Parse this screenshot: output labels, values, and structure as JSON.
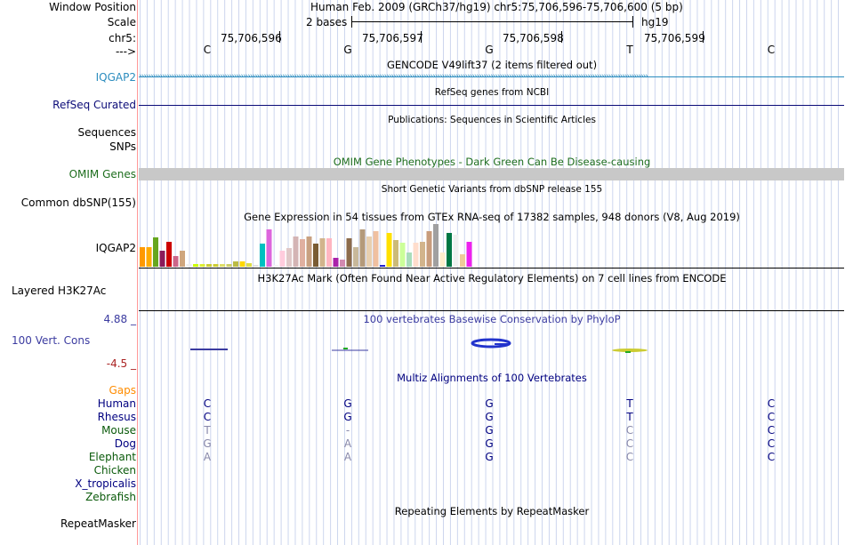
{
  "header": {
    "window_position_label": "Window Position",
    "window_position_text": "Human Feb. 2009 (GRCh37/hg19)   chr5:75,706,596-75,706,600 (5 bp)",
    "scale_label": "Scale",
    "scale_bases": "2 bases",
    "scale_assembly": "hg19",
    "chrom_label": "chr5:",
    "strand_label": "--->",
    "positions": [
      "75,706,596",
      "75,706,597",
      "75,706,598",
      "75,706,599"
    ],
    "bases": [
      "C",
      "G",
      "G",
      "T",
      "C"
    ]
  },
  "tracks": {
    "gencode": {
      "title": "GENCODE V49lift37 (2 items filtered out)",
      "label": "IQGAP2",
      "color": "#2b8cbe"
    },
    "refseq": {
      "title": "RefSeq genes from NCBI",
      "label": "RefSeq Curated",
      "color": "#0c0c78"
    },
    "publications": {
      "title": "Publications: Sequences in Scientific Articles",
      "label1": "Sequences",
      "label2": "SNPs"
    },
    "omim": {
      "title": "OMIM Gene Phenotypes - Dark Green Can Be Disease-causing",
      "label": "OMIM Genes",
      "color": "#1e6e1e"
    },
    "dbsnp": {
      "title": "Short Genetic Variants from dbSNP release 155",
      "label": "Common dbSNP(155)"
    },
    "gtex": {
      "title": "Gene Expression in 54 tissues from GTEx RNA-seq of 17382 samples, 948 donors (V8, Aug 2019)",
      "label": "IQGAP2"
    },
    "h3k27ac": {
      "title": "H3K27Ac Mark (Often Found Near Active Regulatory Elements) on 7 cell lines from ENCODE",
      "label": "Layered H3K27Ac"
    },
    "conservation": {
      "title": "100 vertebrates Basewise Conservation by PhyloP",
      "label": "100 Vert. Cons",
      "max": "4.88 _",
      "min": "-4.5 _",
      "color": "#3b3ba0"
    },
    "multiz": {
      "title": "Multiz Alignments of 100 Vertebrates",
      "gaps_label": "Gaps",
      "species": [
        {
          "name": "Human",
          "color": "#000080",
          "bases": [
            "C",
            "G",
            "G",
            "T",
            "C"
          ]
        },
        {
          "name": "Rhesus",
          "color": "#000080",
          "bases": [
            "C",
            "G",
            "G",
            "T",
            "C"
          ]
        },
        {
          "name": "Mouse",
          "color": "#0a5a0a",
          "bases": [
            "T",
            "-",
            "G",
            "C",
            "C"
          ]
        },
        {
          "name": "Dog",
          "color": "#000080",
          "bases": [
            "G",
            "A",
            "G",
            "C",
            "C"
          ]
        },
        {
          "name": "Elephant",
          "color": "#0a5a0a",
          "bases": [
            "A",
            "A",
            "G",
            "C",
            "C"
          ]
        },
        {
          "name": "Chicken",
          "color": "#0a5a0a",
          "bases": [
            "",
            "",
            "",
            "",
            ""
          ]
        },
        {
          "name": "X_tropicalis",
          "color": "#000080",
          "bases": [
            "",
            "",
            "",
            "",
            ""
          ]
        },
        {
          "name": "Zebrafish",
          "color": "#0a5a0a",
          "bases": [
            "",
            "",
            "",
            "",
            ""
          ]
        }
      ]
    },
    "repeatmasker": {
      "title": "Repeating Elements by RepeatMasker",
      "label": "RepeatMasker"
    }
  },
  "gtex_chart": {
    "chart_data": {
      "type": "bar",
      "title": "Gene Expression in 54 tissues from GTEx RNA-seq of 17382 samples, 948 donors (V8, Aug 2019)",
      "values": [
        22,
        22,
        33,
        18,
        28,
        12,
        18,
        3,
        3,
        3,
        3,
        3,
        3,
        3,
        6,
        6,
        4,
        2,
        26,
        42,
        2,
        18,
        21,
        34,
        31,
        34,
        26,
        32,
        32,
        10,
        8,
        32,
        22,
        42,
        34,
        40,
        2,
        38,
        30,
        27,
        16,
        27,
        28,
        40,
        48,
        16,
        38,
        36,
        14,
        28
      ],
      "colors": [
        "#ff9900",
        "#ffaa00",
        "#66a61e",
        "#8b1a5a",
        "#cc0000",
        "#cc6688",
        "#cfa67d",
        "#eeeeee",
        "#ccff00",
        "#ddee33",
        "#cccc33",
        "#cccc33",
        "#dddd66",
        "#cccc66",
        "#bbbb44",
        "#ffd700",
        "#dddd44",
        "#e0e0e0",
        "#00c0c0",
        "#dd66dd",
        "#f5f5f5",
        "#ffccdd",
        "#e0c8c8",
        "#d4b4b4",
        "#e0b0a0",
        "#c8a080",
        "#7a5c33",
        "#d2b48c",
        "#ffb6c1",
        "#aa22aa",
        "#d28ab0",
        "#8b6b4b",
        "#c8b89a",
        "#b49a7a",
        "#e8d0b0",
        "#f0c0a0",
        "#2222cc",
        "#ffe000",
        "#ccbb77",
        "#ccff99",
        "#aaddbb",
        "#ffddcc",
        "#d2b48c",
        "#c89c7c",
        "#a0a0a0",
        "#ffeecc",
        "#007744",
        "#f0f0f0",
        "#eecc99",
        "#ee22ee"
      ]
    }
  },
  "colors": {
    "guide": "#cdd6ee",
    "left_border": "#ff9999",
    "omim_band": "#c8c8c8"
  }
}
